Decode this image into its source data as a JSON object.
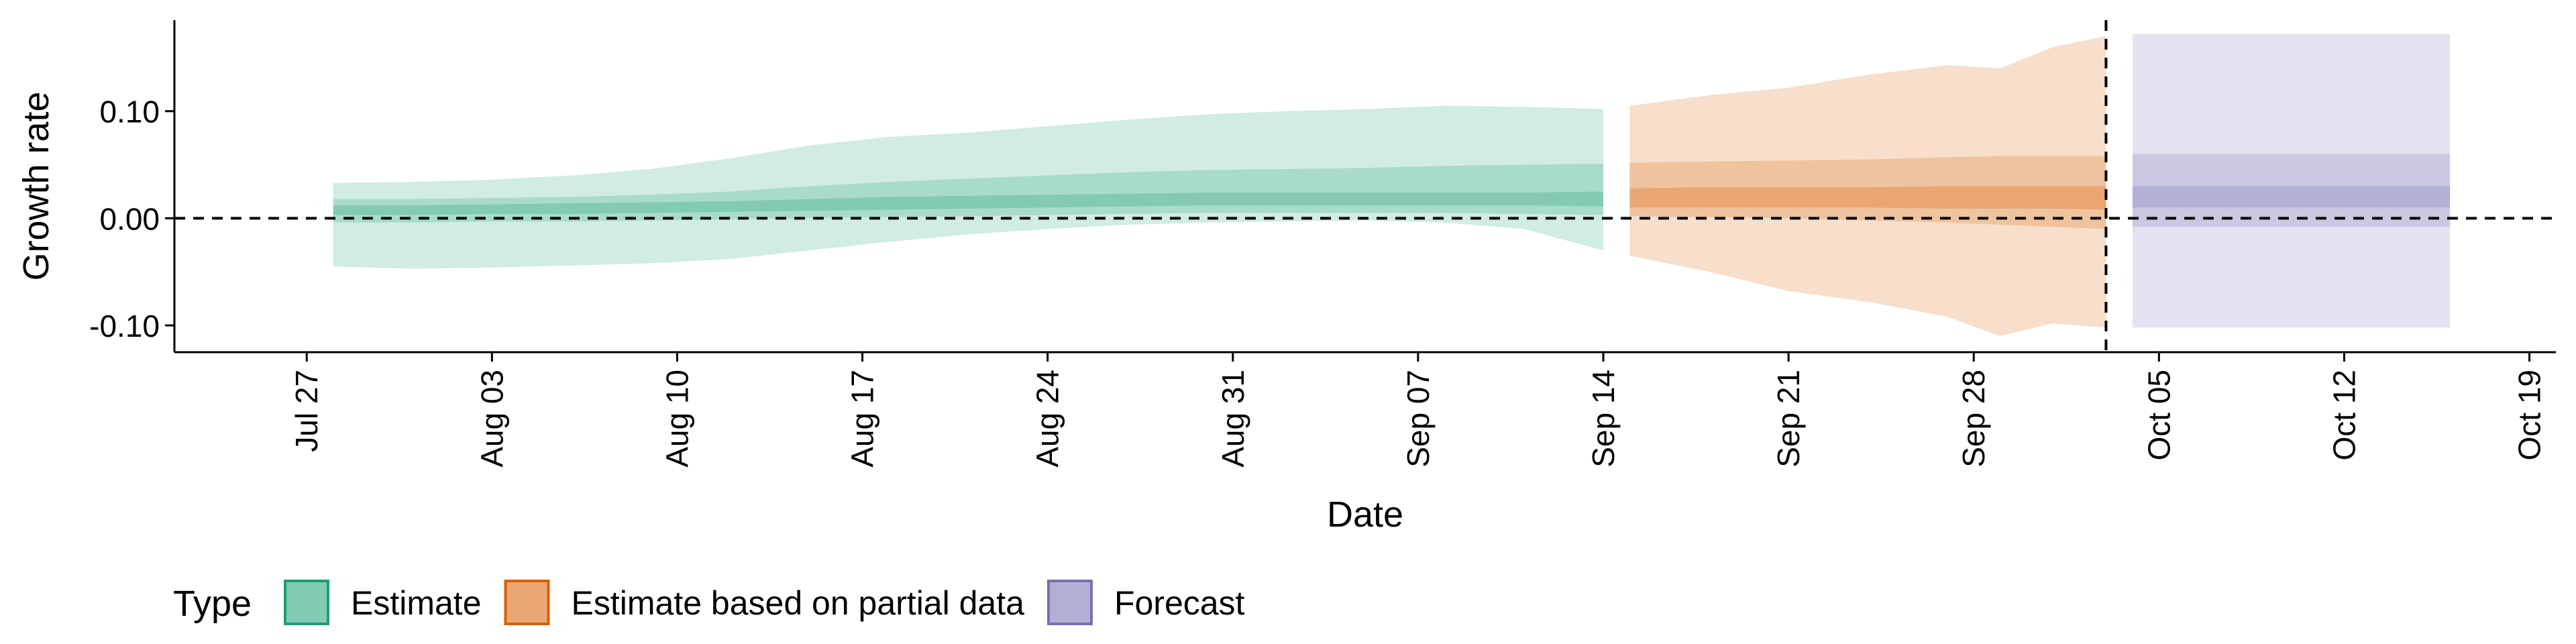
{
  "chart_data": {
    "type": "area",
    "title": "",
    "xlabel": "Date",
    "ylabel": "Growth rate",
    "x_type": "date",
    "xlim": [
      "2020-07-22",
      "2020-10-20"
    ],
    "ylim": [
      -0.125,
      0.185
    ],
    "x_ticks": [
      {
        "date": "2020-07-27",
        "label": "Jul 27"
      },
      {
        "date": "2020-08-03",
        "label": "Aug 03"
      },
      {
        "date": "2020-08-10",
        "label": "Aug 10"
      },
      {
        "date": "2020-08-17",
        "label": "Aug 17"
      },
      {
        "date": "2020-08-24",
        "label": "Aug 24"
      },
      {
        "date": "2020-08-31",
        "label": "Aug 31"
      },
      {
        "date": "2020-09-07",
        "label": "Sep 07"
      },
      {
        "date": "2020-09-14",
        "label": "Sep 14"
      },
      {
        "date": "2020-09-21",
        "label": "Sep 21"
      },
      {
        "date": "2020-09-28",
        "label": "Sep 28"
      },
      {
        "date": "2020-10-05",
        "label": "Oct 05"
      },
      {
        "date": "2020-10-12",
        "label": "Oct 12"
      },
      {
        "date": "2020-10-19",
        "label": "Oct 19"
      }
    ],
    "y_ticks": [
      {
        "value": -0.1,
        "label": "-0.10"
      },
      {
        "value": 0.0,
        "label": "0.00"
      },
      {
        "value": 0.1,
        "label": "0.10"
      }
    ],
    "reference_lines": [
      {
        "axis": "y",
        "value": 0.0,
        "style": "dashed"
      },
      {
        "axis": "x",
        "value": "2020-10-03",
        "style": "dashed"
      }
    ],
    "grid": false,
    "legend": {
      "title": "Type",
      "position": "bottom-left"
    },
    "series": [
      {
        "name": "Estimate",
        "color": "#1b9e77",
        "points": [
          {
            "x": "2020-07-28",
            "lo90": -0.045,
            "hi90": 0.033,
            "lo50": -0.004,
            "hi50": 0.018,
            "lo20": 0.003,
            "hi20": 0.012
          },
          {
            "x": "2020-07-31",
            "lo90": -0.047,
            "hi90": 0.034,
            "lo50": -0.004,
            "hi50": 0.018,
            "lo20": 0.003,
            "hi20": 0.012
          },
          {
            "x": "2020-08-03",
            "lo90": -0.046,
            "hi90": 0.036,
            "lo50": -0.003,
            "hi50": 0.019,
            "lo20": 0.004,
            "hi20": 0.013
          },
          {
            "x": "2020-08-06",
            "lo90": -0.044,
            "hi90": 0.04,
            "lo50": -0.003,
            "hi50": 0.02,
            "lo20": 0.004,
            "hi20": 0.014
          },
          {
            "x": "2020-08-09",
            "lo90": -0.042,
            "hi90": 0.046,
            "lo50": -0.002,
            "hi50": 0.022,
            "lo20": 0.005,
            "hi20": 0.015
          },
          {
            "x": "2020-08-12",
            "lo90": -0.038,
            "hi90": 0.056,
            "lo50": -0.001,
            "hi50": 0.025,
            "lo20": 0.006,
            "hi20": 0.016
          },
          {
            "x": "2020-08-15",
            "lo90": -0.03,
            "hi90": 0.068,
            "lo50": 0.0,
            "hi50": 0.03,
            "lo20": 0.007,
            "hi20": 0.018
          },
          {
            "x": "2020-08-18",
            "lo90": -0.022,
            "hi90": 0.076,
            "lo50": 0.001,
            "hi50": 0.034,
            "lo20": 0.008,
            "hi20": 0.02
          },
          {
            "x": "2020-08-21",
            "lo90": -0.015,
            "hi90": 0.08,
            "lo50": 0.002,
            "hi50": 0.037,
            "lo20": 0.009,
            "hi20": 0.021
          },
          {
            "x": "2020-08-24",
            "lo90": -0.01,
            "hi90": 0.086,
            "lo50": 0.003,
            "hi50": 0.04,
            "lo20": 0.01,
            "hi20": 0.022
          },
          {
            "x": "2020-08-27",
            "lo90": -0.006,
            "hi90": 0.092,
            "lo50": 0.004,
            "hi50": 0.043,
            "lo20": 0.011,
            "hi20": 0.023
          },
          {
            "x": "2020-08-30",
            "lo90": -0.004,
            "hi90": 0.097,
            "lo50": 0.005,
            "hi50": 0.045,
            "lo20": 0.012,
            "hi20": 0.024
          },
          {
            "x": "2020-09-02",
            "lo90": -0.003,
            "hi90": 0.1,
            "lo50": 0.005,
            "hi50": 0.046,
            "lo20": 0.012,
            "hi20": 0.024
          },
          {
            "x": "2020-09-05",
            "lo90": -0.002,
            "hi90": 0.102,
            "lo50": 0.005,
            "hi50": 0.047,
            "lo20": 0.012,
            "hi20": 0.024
          },
          {
            "x": "2020-09-08",
            "lo90": -0.004,
            "hi90": 0.105,
            "lo50": 0.005,
            "hi50": 0.049,
            "lo20": 0.012,
            "hi20": 0.024
          },
          {
            "x": "2020-09-11",
            "lo90": -0.01,
            "hi90": 0.104,
            "lo50": 0.004,
            "hi50": 0.05,
            "lo20": 0.012,
            "hi20": 0.024
          },
          {
            "x": "2020-09-14",
            "lo90": -0.03,
            "hi90": 0.102,
            "lo50": 0.003,
            "hi50": 0.051,
            "lo20": 0.011,
            "hi20": 0.025
          }
        ]
      },
      {
        "name": "Estimate based on partial data",
        "color": "#d95f02",
        "points": [
          {
            "x": "2020-09-15",
            "lo90": -0.035,
            "hi90": 0.105,
            "lo50": 0.002,
            "hi50": 0.052,
            "lo20": 0.01,
            "hi20": 0.028
          },
          {
            "x": "2020-09-18",
            "lo90": -0.05,
            "hi90": 0.115,
            "lo50": 0.001,
            "hi50": 0.053,
            "lo20": 0.01,
            "hi20": 0.029
          },
          {
            "x": "2020-09-21",
            "lo90": -0.068,
            "hi90": 0.122,
            "lo50": 0.0,
            "hi50": 0.054,
            "lo20": 0.01,
            "hi20": 0.029
          },
          {
            "x": "2020-09-24",
            "lo90": -0.078,
            "hi90": 0.134,
            "lo50": -0.002,
            "hi50": 0.055,
            "lo20": 0.01,
            "hi20": 0.029
          },
          {
            "x": "2020-09-27",
            "lo90": -0.092,
            "hi90": 0.143,
            "lo50": -0.004,
            "hi50": 0.057,
            "lo20": 0.009,
            "hi20": 0.03
          },
          {
            "x": "2020-09-29",
            "lo90": -0.11,
            "hi90": 0.14,
            "lo50": -0.006,
            "hi50": 0.058,
            "lo20": 0.009,
            "hi20": 0.03
          },
          {
            "x": "2020-10-01",
            "lo90": -0.098,
            "hi90": 0.16,
            "lo50": -0.008,
            "hi50": 0.058,
            "lo20": 0.009,
            "hi20": 0.03
          },
          {
            "x": "2020-10-03",
            "lo90": -0.102,
            "hi90": 0.17,
            "lo50": -0.01,
            "hi50": 0.058,
            "lo20": 0.008,
            "hi20": 0.03
          }
        ]
      },
      {
        "name": "Forecast",
        "color": "#7570b3",
        "points": [
          {
            "x": "2020-10-04",
            "lo90": -0.102,
            "hi90": 0.172,
            "lo50": -0.008,
            "hi50": 0.06,
            "lo20": 0.01,
            "hi20": 0.03
          },
          {
            "x": "2020-10-16",
            "lo90": -0.102,
            "hi90": 0.172,
            "lo50": -0.008,
            "hi50": 0.06,
            "lo20": 0.01,
            "hi20": 0.03
          }
        ]
      }
    ]
  }
}
